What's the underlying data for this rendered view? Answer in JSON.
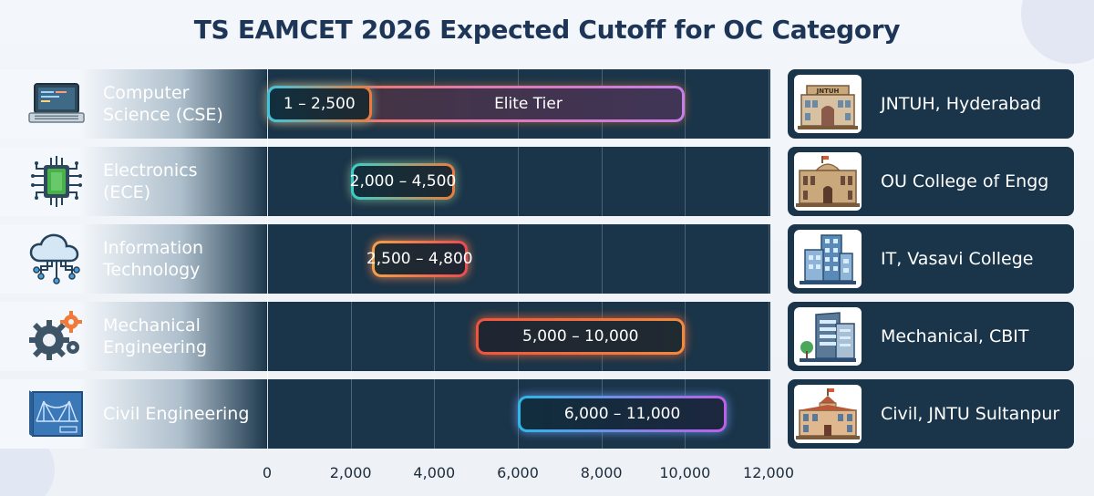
{
  "chart_data": {
    "type": "bar",
    "title": "TS EAMCET 2026 Expected Cutoff for OC Category",
    "orientation": "horizontal-range",
    "xlim": [
      0,
      12000
    ],
    "x_ticks": [
      "0",
      "2,000",
      "4,000",
      "6,000",
      "8,000",
      "10,000",
      "12,000"
    ],
    "x_tick_values": [
      0,
      2000,
      4000,
      6000,
      8000,
      10000,
      12000
    ],
    "grid": true,
    "rows": [
      {
        "category": "Computer Science (CSE)",
        "label_lines": [
          "Computer",
          "Science (CSE)"
        ],
        "icon": "laptop-icon",
        "range_start": 1,
        "range_end": 2500,
        "range_label": "1 – 2,500",
        "tier_end": 10000,
        "tier_label": "Elite Tier",
        "colors": [
          "#3cc6e0",
          "#f07a3a"
        ],
        "college": "JNTUH, Hyderabad",
        "college_icon": "jntuh-building-icon"
      },
      {
        "category": "Electronics (ECE)",
        "label_lines": [
          "Electronics",
          "(ECE)"
        ],
        "icon": "chip-icon",
        "range_start": 2000,
        "range_end": 4500,
        "range_label": "2,000 – 4,500",
        "colors": [
          "#38d0c8",
          "#f07a3a"
        ],
        "college": "OU College of Engg",
        "college_icon": "ou-building-icon"
      },
      {
        "category": "Information Technology",
        "label_lines": [
          "Information",
          "Technology"
        ],
        "icon": "cloud-network-icon",
        "range_start": 2500,
        "range_end": 4800,
        "range_label": "2,500 – 4,800",
        "colors": [
          "#f3a24a",
          "#ea4a52"
        ],
        "college": "IT, Vasavi College",
        "college_icon": "vasavi-building-icon"
      },
      {
        "category": "Mechanical Engineering",
        "label_lines": [
          "Mechanical",
          "Engineering"
        ],
        "icon": "gears-icon",
        "range_start": 5000,
        "range_end": 10000,
        "range_label": "5,000 – 10,000",
        "colors": [
          "#f0543c",
          "#f28a3c"
        ],
        "college": "Mechanical, CBIT",
        "college_icon": "cbit-building-icon"
      },
      {
        "category": "Civil Engineering",
        "label_lines": [
          "Civil Engineering"
        ],
        "icon": "bridge-blueprint-icon",
        "range_start": 6000,
        "range_end": 11000,
        "range_label": "6,000 – 11,000",
        "colors": [
          "#2fb7e8",
          "#c15ee8"
        ],
        "college": "Civil, JNTU Sultanpur",
        "college_icon": "sultanpur-building-icon"
      }
    ]
  },
  "building_sign": "JNTUH"
}
